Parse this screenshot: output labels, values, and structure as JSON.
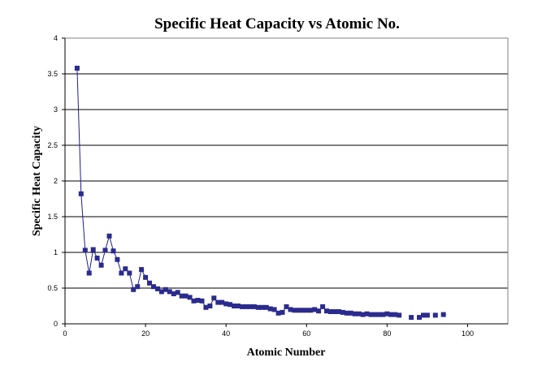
{
  "chart_data": {
    "type": "scatter",
    "title": "Specific Heat Capacity vs Atomic No.",
    "xlabel": "Atomic Number",
    "ylabel": "Specific Heat Capacity",
    "xlim": [
      0,
      110
    ],
    "ylim": [
      0,
      4
    ],
    "xticks": [
      0,
      20,
      40,
      60,
      80,
      100
    ],
    "yticks": [
      0,
      0.5,
      1,
      1.5,
      2,
      2.5,
      3,
      3.5,
      4
    ],
    "grid": "horizontal major gridlines",
    "legend": "none",
    "series": [
      {
        "color": "#2b2b8e",
        "marker": "square",
        "connected": true,
        "points": [
          [
            3,
            3.58
          ],
          [
            4,
            1.82
          ],
          [
            5,
            1.03
          ],
          [
            6,
            0.71
          ],
          [
            7,
            1.04
          ],
          [
            8,
            0.92
          ],
          [
            9,
            0.82
          ],
          [
            10,
            1.03
          ],
          [
            11,
            1.23
          ],
          [
            12,
            1.02
          ],
          [
            13,
            0.9
          ],
          [
            14,
            0.71
          ],
          [
            15,
            0.77
          ],
          [
            16,
            0.71
          ],
          [
            17,
            0.48
          ],
          [
            18,
            0.52
          ],
          [
            19,
            0.76
          ],
          [
            20,
            0.65
          ],
          [
            21,
            0.57
          ],
          [
            22,
            0.52
          ],
          [
            23,
            0.49
          ],
          [
            24,
            0.45
          ],
          [
            25,
            0.48
          ],
          [
            26,
            0.45
          ],
          [
            27,
            0.42
          ],
          [
            28,
            0.44
          ],
          [
            29,
            0.39
          ],
          [
            30,
            0.39
          ],
          [
            31,
            0.37
          ],
          [
            32,
            0.32
          ],
          [
            33,
            0.33
          ],
          [
            34,
            0.32
          ],
          [
            35,
            0.23
          ],
          [
            36,
            0.25
          ],
          [
            37,
            0.36
          ],
          [
            38,
            0.3
          ],
          [
            39,
            0.3
          ],
          [
            40,
            0.28
          ],
          [
            41,
            0.27
          ],
          [
            42,
            0.25
          ],
          [
            43,
            0.25
          ],
          [
            44,
            0.24
          ],
          [
            45,
            0.24
          ],
          [
            46,
            0.24
          ],
          [
            47,
            0.24
          ],
          [
            48,
            0.23
          ],
          [
            49,
            0.23
          ],
          [
            50,
            0.23
          ],
          [
            51,
            0.21
          ],
          [
            52,
            0.2
          ],
          [
            53,
            0.15
          ],
          [
            54,
            0.16
          ],
          [
            55,
            0.24
          ],
          [
            56,
            0.2
          ],
          [
            57,
            0.19
          ],
          [
            58,
            0.19
          ],
          [
            59,
            0.19
          ],
          [
            60,
            0.19
          ],
          [
            61,
            0.19
          ],
          [
            62,
            0.2
          ],
          [
            63,
            0.18
          ],
          [
            64,
            0.24
          ],
          [
            65,
            0.18
          ],
          [
            66,
            0.17
          ],
          [
            67,
            0.17
          ],
          [
            68,
            0.17
          ],
          [
            69,
            0.16
          ],
          [
            70,
            0.15
          ],
          [
            71,
            0.15
          ],
          [
            72,
            0.14
          ],
          [
            73,
            0.14
          ],
          [
            74,
            0.13
          ],
          [
            75,
            0.14
          ],
          [
            76,
            0.13
          ],
          [
            77,
            0.13
          ],
          [
            78,
            0.13
          ],
          [
            79,
            0.13
          ],
          [
            80,
            0.14
          ],
          [
            81,
            0.13
          ],
          [
            82,
            0.13
          ],
          [
            83,
            0.12
          ]
        ]
      },
      {
        "color": "#2b2b8e",
        "marker": "square",
        "connected": false,
        "points": [
          [
            86,
            0.09
          ],
          [
            88,
            0.09
          ],
          [
            89,
            0.12
          ],
          [
            90,
            0.12
          ],
          [
            92,
            0.12
          ],
          [
            94,
            0.13
          ]
        ]
      }
    ]
  }
}
